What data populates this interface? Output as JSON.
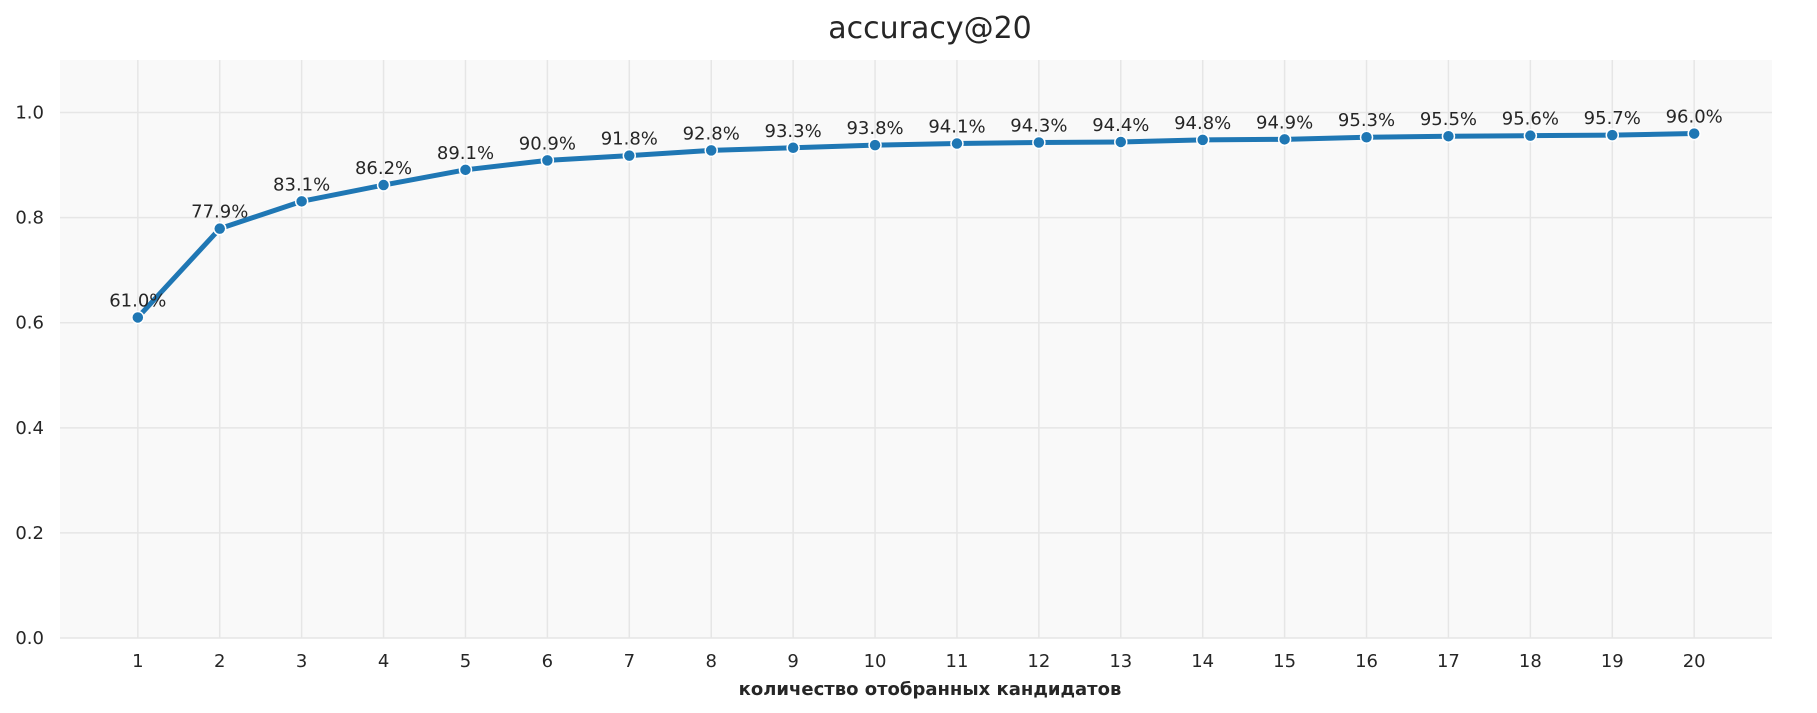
{
  "chart_data": {
    "type": "line",
    "title": "accuracy@20",
    "xlabel": "количество отобранных кандидатов",
    "ylabel": "",
    "x": [
      1,
      2,
      3,
      4,
      5,
      6,
      7,
      8,
      9,
      10,
      11,
      12,
      13,
      14,
      15,
      16,
      17,
      18,
      19,
      20
    ],
    "x_tick_labels": [
      "1",
      "2",
      "3",
      "4",
      "5",
      "6",
      "7",
      "8",
      "9",
      "10",
      "11",
      "12",
      "13",
      "14",
      "15",
      "16",
      "17",
      "18",
      "19",
      "20"
    ],
    "xlim": [
      0.05,
      20.95
    ],
    "y_ticks": [
      0.0,
      0.2,
      0.4,
      0.6,
      0.8,
      1.0
    ],
    "y_tick_labels": [
      "0.0",
      "0.2",
      "0.4",
      "0.6",
      "0.8",
      "1.0"
    ],
    "ylim": [
      0.0,
      1.1
    ],
    "grid": true,
    "series": [
      {
        "values": [
          0.61,
          0.779,
          0.831,
          0.862,
          0.891,
          0.909,
          0.918,
          0.928,
          0.933,
          0.938,
          0.941,
          0.943,
          0.944,
          0.948,
          0.949,
          0.953,
          0.955,
          0.956,
          0.957,
          0.96
        ],
        "data_labels": [
          "61.0%",
          "77.9%",
          "83.1%",
          "86.2%",
          "89.1%",
          "90.9%",
          "91.8%",
          "92.8%",
          "93.3%",
          "93.8%",
          "94.1%",
          "94.3%",
          "94.4%",
          "94.8%",
          "94.9%",
          "95.3%",
          "95.5%",
          "95.6%",
          "95.7%",
          "96.0%"
        ],
        "color": "#1f77b4"
      }
    ],
    "colors": {
      "background": "#ffffff",
      "plot_background": "#f9f9f9",
      "grid": "#e6e6e6",
      "line": "#1f77b4",
      "marker_edge": "#ffffff"
    }
  }
}
